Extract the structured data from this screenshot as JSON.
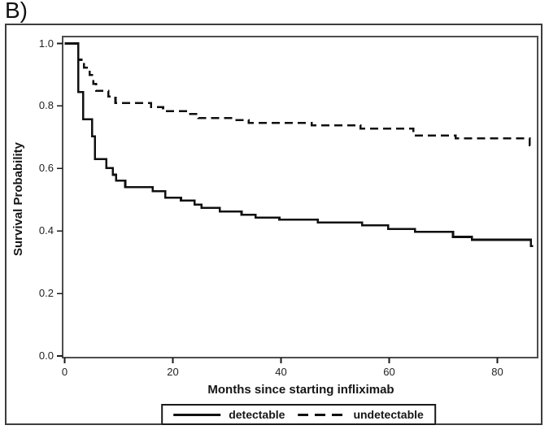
{
  "figure": {
    "label": "B)"
  },
  "axes": {
    "x": {
      "title": "Months since starting infliximab",
      "tick_labels": [
        "0",
        "20",
        "40",
        "60",
        "80"
      ],
      "range": [
        0,
        87.5
      ]
    },
    "y": {
      "title": "Survival Probability",
      "tick_labels": [
        "1.0",
        "0.8",
        "0.6",
        "0.4",
        "0.2",
        "0.0"
      ],
      "range": [
        0,
        1.0
      ]
    }
  },
  "legend": {
    "items": [
      {
        "label": "detectable",
        "style": "solid"
      },
      {
        "label": "undetectable",
        "style": "dashed"
      }
    ]
  },
  "colors": {
    "curve": "#101010",
    "plot_frame": "#4d4d4d",
    "outer_border": "#3d3d3d",
    "text": "#1a1a1a",
    "background": "#ffffff"
  },
  "chart_data": {
    "type": "line",
    "subtype": "kaplan-meier-step",
    "title": "B)",
    "xlabel": "Months since starting infliximab",
    "ylabel": "Survival Probability",
    "xlim": [
      0,
      87.5
    ],
    "ylim": [
      0.0,
      1.0
    ],
    "x_ticks": [
      0,
      20,
      40,
      60,
      80
    ],
    "y_ticks": [
      1.0,
      0.8,
      0.6,
      0.4,
      0.2,
      0.0
    ],
    "grid": false,
    "legend_position": "bottom-outside-boxed",
    "series": [
      {
        "name": "detectable",
        "line": "solid",
        "color": "#101010",
        "end_month": 86.6,
        "steps": [
          [
            0,
            1.0
          ],
          [
            2.5,
            0.845
          ],
          [
            3.4,
            0.757
          ],
          [
            5.1,
            0.703
          ],
          [
            5.6,
            0.63
          ],
          [
            7.7,
            0.601
          ],
          [
            8.9,
            0.58
          ],
          [
            9.5,
            0.561
          ],
          [
            11.2,
            0.54
          ],
          [
            16.3,
            0.527
          ],
          [
            18.6,
            0.506
          ],
          [
            21.5,
            0.497
          ],
          [
            24.0,
            0.484
          ],
          [
            25.3,
            0.474
          ],
          [
            28.7,
            0.462
          ],
          [
            32.7,
            0.452
          ],
          [
            35.3,
            0.443
          ],
          [
            39.7,
            0.436
          ],
          [
            46.8,
            0.427
          ],
          [
            55.0,
            0.418
          ],
          [
            59.8,
            0.406
          ],
          [
            64.8,
            0.397
          ],
          [
            71.8,
            0.381
          ],
          [
            75.3,
            0.372
          ],
          [
            86.2,
            0.352
          ]
        ]
      },
      {
        "name": "undetectable",
        "line": "dashed",
        "color": "#101010",
        "end_month": 86.4,
        "steps": [
          [
            0,
            1.0
          ],
          [
            2.5,
            0.948
          ],
          [
            3.6,
            0.923
          ],
          [
            4.6,
            0.899
          ],
          [
            5.3,
            0.871
          ],
          [
            5.8,
            0.848
          ],
          [
            8.1,
            0.83
          ],
          [
            9.4,
            0.809
          ],
          [
            16.0,
            0.796
          ],
          [
            18.2,
            0.783
          ],
          [
            22.7,
            0.774
          ],
          [
            24.7,
            0.761
          ],
          [
            31.0,
            0.755
          ],
          [
            34.0,
            0.746
          ],
          [
            45.7,
            0.738
          ],
          [
            54.7,
            0.728
          ],
          [
            64.5,
            0.705
          ],
          [
            72.3,
            0.696
          ],
          [
            86.0,
            0.674
          ]
        ]
      }
    ]
  }
}
